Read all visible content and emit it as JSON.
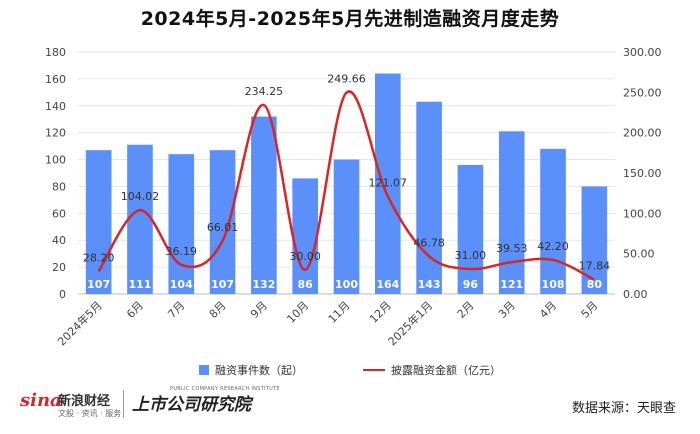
{
  "title": "2024年5月-2025年5月先进制造融资月度走势",
  "chart_data": {
    "type": "bar+line",
    "categories": [
      "2024年5月",
      "6月",
      "7月",
      "8月",
      "9月",
      "10月",
      "11月",
      "12月",
      "2025年1月",
      "2月",
      "3月",
      "4月",
      "5月"
    ],
    "series": [
      {
        "name": "融资事件数（起）",
        "type": "bar",
        "axis": "left",
        "color": "#5b8ff9",
        "values": [
          107,
          111,
          104,
          107,
          132,
          86,
          100,
          164,
          143,
          96,
          121,
          108,
          80
        ]
      },
      {
        "name": "披露融资金额（亿元）",
        "type": "line",
        "axis": "right",
        "color": "#d62728",
        "smooth": true,
        "values": [
          28.2,
          104.02,
          36.19,
          66.01,
          234.25,
          30.0,
          249.66,
          121.07,
          46.78,
          31.0,
          39.53,
          42.2,
          17.84
        ],
        "labels": [
          "28.20",
          "104.02",
          "36.19",
          "66.01",
          "234.25",
          "30.00",
          "249.66",
          "121.07",
          "46.78",
          "31.00",
          "39.53",
          "42.20",
          "17.84"
        ]
      }
    ],
    "y_left": {
      "min": 0,
      "max": 180,
      "ticks": [
        "0",
        "20",
        "40",
        "60",
        "80",
        "100",
        "120",
        "140",
        "160",
        "180"
      ]
    },
    "y_right": {
      "min": 0,
      "max": 300,
      "ticks": [
        "0.00",
        "50.00",
        "100.00",
        "150.00",
        "200.00",
        "250.00",
        "300.00"
      ]
    },
    "grid": true,
    "legend_position": "bottom"
  },
  "legend": {
    "bar_label": "融资事件数（起）",
    "line_label": "披露融资金额（亿元）"
  },
  "footer": {
    "sina_logo": "sina",
    "sina_name": "新浪财经",
    "sina_sub": "文股 · 资讯 · 服务",
    "publisher": "上市公司研究院",
    "publisher_en": "PUBLIC COMPANY RESEARCH INSTITUTE",
    "source": "数据来源：天眼查"
  }
}
